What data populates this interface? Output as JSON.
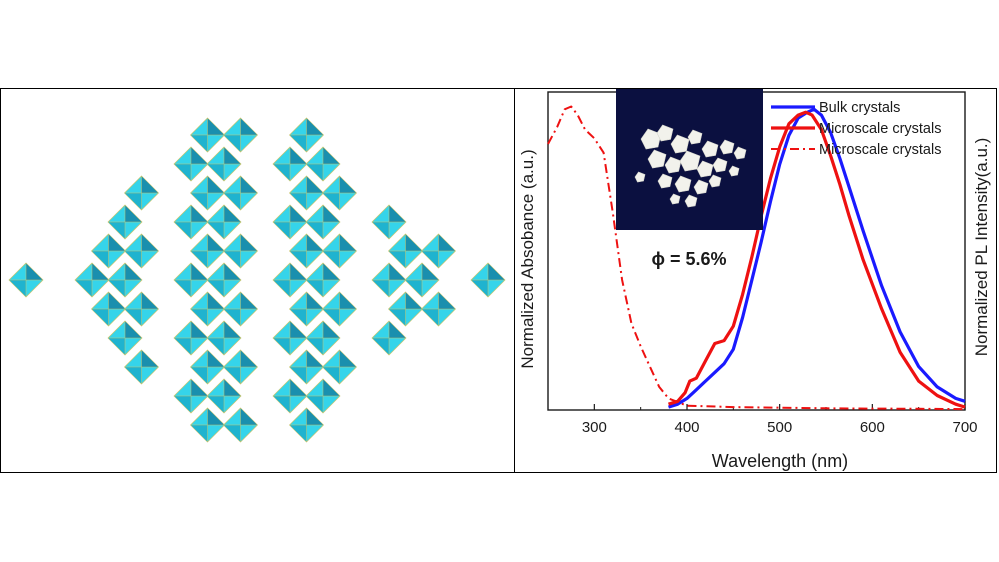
{
  "figure": {
    "structure_label": "framework polyhedral structure",
    "photo_label": "photo of microscale crystals",
    "quantum_yield_label": "ϕ = 5.6%"
  },
  "colors": {
    "poly_light": "#35d4ea",
    "poly_mid": "#1fb3cf",
    "poly_dark": "#1a8fae",
    "poly_edge": "#c8c46a",
    "bulk": "#1a1aff",
    "micro": "#ee1111"
  },
  "chart_data": {
    "type": "line",
    "xlabel": "Wavelength (nm)",
    "ylabel_left": "Normalized Absobance (a.u.)",
    "ylabel_right": "Normalized PL Intensity(a.u.)",
    "xlim": [
      250,
      700
    ],
    "ylim": [
      0,
      1.1
    ],
    "xticks": [
      300,
      400,
      500,
      600,
      700
    ],
    "series": [
      {
        "name": "Bulk crystals",
        "style": "solid",
        "color": "#1a1aff",
        "x": [
          380,
          390,
          400,
          410,
          420,
          430,
          440,
          450,
          460,
          470,
          480,
          490,
          500,
          510,
          520,
          530,
          537,
          545,
          555,
          565,
          575,
          590,
          610,
          630,
          650,
          670,
          690,
          700
        ],
        "y": [
          0.01,
          0.02,
          0.04,
          0.07,
          0.1,
          0.13,
          0.16,
          0.21,
          0.32,
          0.45,
          0.58,
          0.72,
          0.85,
          0.95,
          1.01,
          1.03,
          1.04,
          1.02,
          0.96,
          0.87,
          0.77,
          0.62,
          0.43,
          0.27,
          0.15,
          0.08,
          0.04,
          0.03
        ]
      },
      {
        "name": "Microscale crystals",
        "style": "solid",
        "color": "#ee1111",
        "x": [
          380,
          390,
          398,
          403,
          410,
          420,
          430,
          440,
          450,
          460,
          470,
          480,
          490,
          500,
          510,
          520,
          528,
          535,
          545,
          555,
          565,
          575,
          590,
          610,
          630,
          650,
          670,
          690,
          700
        ],
        "y": [
          0.02,
          0.03,
          0.06,
          0.1,
          0.11,
          0.17,
          0.23,
          0.24,
          0.29,
          0.4,
          0.53,
          0.67,
          0.8,
          0.91,
          0.99,
          1.02,
          1.03,
          1.02,
          0.97,
          0.88,
          0.78,
          0.67,
          0.52,
          0.35,
          0.2,
          0.1,
          0.05,
          0.02,
          0.01
        ]
      },
      {
        "name": "Microscale crystals",
        "style": "dash-dot",
        "color": "#ee1111",
        "x": [
          250,
          260,
          268,
          275,
          282,
          290,
          300,
          310,
          320,
          330,
          340,
          350,
          360,
          370,
          380,
          400,
          450,
          500,
          550,
          600,
          650,
          700
        ],
        "y": [
          0.92,
          0.98,
          1.04,
          1.05,
          1.02,
          0.97,
          0.94,
          0.89,
          0.68,
          0.45,
          0.3,
          0.22,
          0.15,
          0.08,
          0.04,
          0.015,
          0.01,
          0.008,
          0.006,
          0.005,
          0.004,
          0.003
        ]
      }
    ],
    "legend_position": "top-right",
    "grid": false
  }
}
